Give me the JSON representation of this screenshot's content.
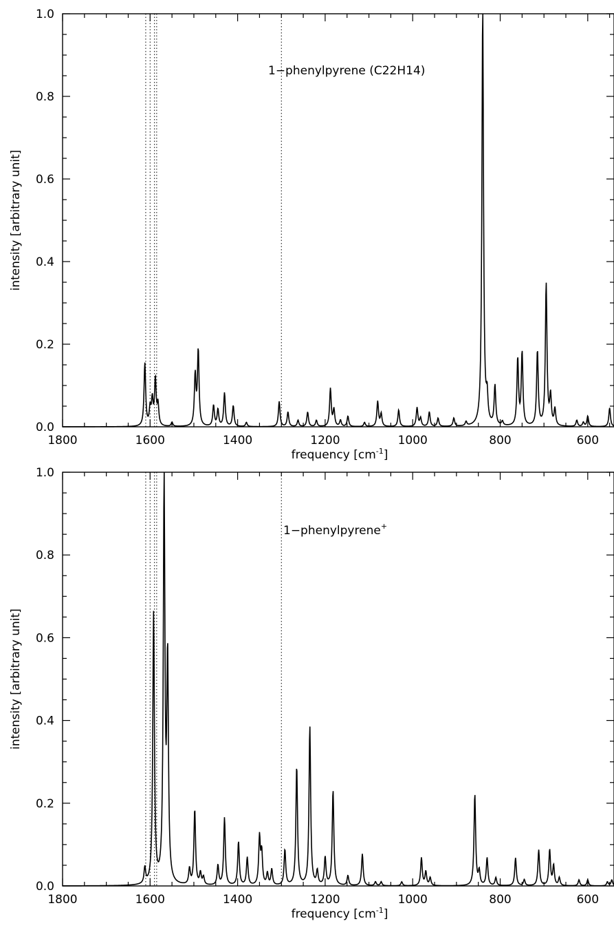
{
  "chart_data": [
    {
      "type": "line",
      "annotation": "1−phenylpyrene (C22H14)",
      "xlabel": "frequency [cm",
      "xlabel_sup": "-1",
      "xlabel_end": "]",
      "ylabel": "intensity [arbitrary unit]",
      "xlim": [
        1800,
        540
      ],
      "ylim": [
        0,
        1.0
      ],
      "xticks": [
        1800,
        1600,
        1400,
        1200,
        1000,
        800,
        600
      ],
      "yticks": [
        0.0,
        0.2,
        0.4,
        0.6,
        0.8,
        1.0
      ],
      "ytick_labels": [
        "0.0",
        "0.2",
        "0.4",
        "0.6",
        "0.8",
        "1.0"
      ],
      "reference_lines": [
        1610,
        1600,
        1590,
        1585,
        1300
      ],
      "peaks": [
        {
          "x": 1612,
          "y": 0.15
        },
        {
          "x": 1600,
          "y": 0.04
        },
        {
          "x": 1595,
          "y": 0.06
        },
        {
          "x": 1588,
          "y": 0.11
        },
        {
          "x": 1582,
          "y": 0.05
        },
        {
          "x": 1550,
          "y": 0.01
        },
        {
          "x": 1497,
          "y": 0.12
        },
        {
          "x": 1490,
          "y": 0.18
        },
        {
          "x": 1455,
          "y": 0.05
        },
        {
          "x": 1445,
          "y": 0.04
        },
        {
          "x": 1430,
          "y": 0.08
        },
        {
          "x": 1410,
          "y": 0.05
        },
        {
          "x": 1380,
          "y": 0.01
        },
        {
          "x": 1305,
          "y": 0.06
        },
        {
          "x": 1285,
          "y": 0.035
        },
        {
          "x": 1262,
          "y": 0.015
        },
        {
          "x": 1240,
          "y": 0.035
        },
        {
          "x": 1220,
          "y": 0.015
        },
        {
          "x": 1188,
          "y": 0.09
        },
        {
          "x": 1180,
          "y": 0.04
        },
        {
          "x": 1165,
          "y": 0.015
        },
        {
          "x": 1148,
          "y": 0.025
        },
        {
          "x": 1110,
          "y": 0.01
        },
        {
          "x": 1080,
          "y": 0.06
        },
        {
          "x": 1072,
          "y": 0.03
        },
        {
          "x": 1032,
          "y": 0.04
        },
        {
          "x": 990,
          "y": 0.045
        },
        {
          "x": 982,
          "y": 0.02
        },
        {
          "x": 962,
          "y": 0.035
        },
        {
          "x": 942,
          "y": 0.02
        },
        {
          "x": 906,
          "y": 0.02
        },
        {
          "x": 878,
          "y": 0.01
        },
        {
          "x": 840,
          "y": 1.0
        },
        {
          "x": 830,
          "y": 0.06
        },
        {
          "x": 812,
          "y": 0.095
        },
        {
          "x": 795,
          "y": 0.01
        },
        {
          "x": 760,
          "y": 0.16
        },
        {
          "x": 750,
          "y": 0.175
        },
        {
          "x": 715,
          "y": 0.18
        },
        {
          "x": 695,
          "y": 0.34
        },
        {
          "x": 685,
          "y": 0.07
        },
        {
          "x": 675,
          "y": 0.04
        },
        {
          "x": 625,
          "y": 0.015
        },
        {
          "x": 610,
          "y": 0.01
        },
        {
          "x": 600,
          "y": 0.025
        },
        {
          "x": 550,
          "y": 0.045
        }
      ]
    },
    {
      "type": "line",
      "annotation": "1−phenylpyrene",
      "annotation_sup": "+",
      "xlabel": "frequency [cm",
      "xlabel_sup": "-1",
      "xlabel_end": "]",
      "ylabel": "intensity [arbitrary unit]",
      "xlim": [
        1800,
        540
      ],
      "ylim": [
        0,
        1.0
      ],
      "xticks": [
        1800,
        1600,
        1400,
        1200,
        1000,
        800,
        600
      ],
      "yticks": [
        0.0,
        0.2,
        0.4,
        0.6,
        0.8,
        1.0
      ],
      "ytick_labels": [
        "0.0",
        "0.2",
        "0.4",
        "0.6",
        "0.8",
        "1.0"
      ],
      "reference_lines": [
        1610,
        1600,
        1590,
        1585,
        1300
      ],
      "peaks": [
        {
          "x": 1612,
          "y": 0.04
        },
        {
          "x": 1592,
          "y": 0.68
        },
        {
          "x": 1568,
          "y": 1.0
        },
        {
          "x": 1560,
          "y": 0.55
        },
        {
          "x": 1510,
          "y": 0.04
        },
        {
          "x": 1498,
          "y": 0.19
        },
        {
          "x": 1485,
          "y": 0.03
        },
        {
          "x": 1478,
          "y": 0.02
        },
        {
          "x": 1445,
          "y": 0.05
        },
        {
          "x": 1430,
          "y": 0.17
        },
        {
          "x": 1398,
          "y": 0.11
        },
        {
          "x": 1378,
          "y": 0.07
        },
        {
          "x": 1350,
          "y": 0.12
        },
        {
          "x": 1345,
          "y": 0.08
        },
        {
          "x": 1332,
          "y": 0.03
        },
        {
          "x": 1322,
          "y": 0.04
        },
        {
          "x": 1292,
          "y": 0.09
        },
        {
          "x": 1265,
          "y": 0.3
        },
        {
          "x": 1235,
          "y": 0.4
        },
        {
          "x": 1218,
          "y": 0.035
        },
        {
          "x": 1200,
          "y": 0.07
        },
        {
          "x": 1182,
          "y": 0.24
        },
        {
          "x": 1148,
          "y": 0.025
        },
        {
          "x": 1115,
          "y": 0.08
        },
        {
          "x": 1085,
          "y": 0.01
        },
        {
          "x": 1072,
          "y": 0.01
        },
        {
          "x": 1025,
          "y": 0.01
        },
        {
          "x": 980,
          "y": 0.07
        },
        {
          "x": 970,
          "y": 0.035
        },
        {
          "x": 960,
          "y": 0.02
        },
        {
          "x": 858,
          "y": 0.23
        },
        {
          "x": 848,
          "y": 0.035
        },
        {
          "x": 830,
          "y": 0.07
        },
        {
          "x": 810,
          "y": 0.02
        },
        {
          "x": 765,
          "y": 0.07
        },
        {
          "x": 745,
          "y": 0.015
        },
        {
          "x": 712,
          "y": 0.09
        },
        {
          "x": 687,
          "y": 0.09
        },
        {
          "x": 678,
          "y": 0.05
        },
        {
          "x": 665,
          "y": 0.02
        },
        {
          "x": 620,
          "y": 0.015
        },
        {
          "x": 600,
          "y": 0.015
        },
        {
          "x": 555,
          "y": 0.01
        },
        {
          "x": 545,
          "y": 0.015
        }
      ]
    }
  ]
}
